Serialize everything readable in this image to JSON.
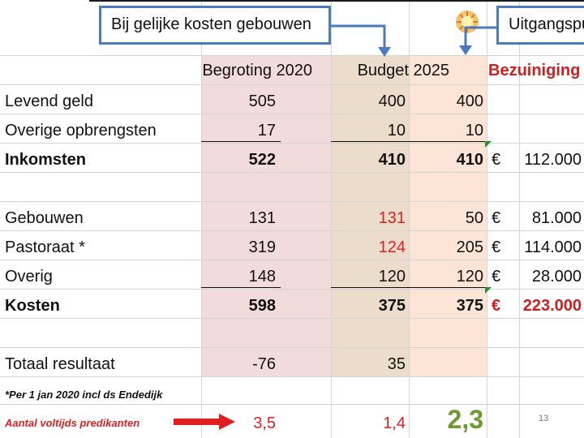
{
  "callouts": {
    "same_costs": "Bij gelijke kosten gebouwen",
    "starting_point": "Uitgangspu"
  },
  "headers": {
    "begroting_2020": "Begroting 2020",
    "budget_2025": "Budget 2025",
    "bezuiniging": "Bezuiniging"
  },
  "rows": {
    "levend_geld": {
      "label": "Levend geld",
      "b2020": "505",
      "b2025a": "400",
      "b2025b": "400"
    },
    "overige": {
      "label": "Overige opbrengsten",
      "b2020": "17",
      "b2025a": "10",
      "b2025b": "10"
    },
    "inkomsten": {
      "label": "Inkomsten",
      "b2020": "522",
      "b2025a": "410",
      "b2025b": "410",
      "euro": "€",
      "saving": "112.000"
    },
    "gebouwen": {
      "label": "Gebouwen",
      "b2020": "131",
      "b2025a": "131",
      "b2025b": "50",
      "euro": "€",
      "saving": "81.000"
    },
    "pastoraat": {
      "label": "Pastoraat *",
      "b2020": "319",
      "b2025a": "124",
      "b2025b": "205",
      "euro": "€",
      "saving": "114.000"
    },
    "overig": {
      "label": "Overig",
      "b2020": "148",
      "b2025a": "120",
      "b2025b": "120",
      "euro": "€",
      "saving": "28.000"
    },
    "kosten": {
      "label": "Kosten",
      "b2020": "598",
      "b2025a": "375",
      "b2025b": "375",
      "euro": "€",
      "saving": "223.000"
    },
    "totaal": {
      "label": "Totaal resultaat",
      "b2020": "-76",
      "b2025a": "35"
    }
  },
  "footnote": "*Per 1 jan 2020 incl ds Endedijk",
  "fte": {
    "label": "Aantal voltijds predikanten",
    "v2020": "3,5",
    "v2025a": "1,4",
    "v2025b": "2,3"
  },
  "page_number": "13",
  "colors": {
    "pink_shade": "#f2dcdb",
    "tan_shade": "#ecdccb",
    "peach_shade": "#fce4d6",
    "callout_border": "#4a7bbd",
    "red": "#e02020",
    "green": "#6b9a2e"
  },
  "icons": [
    "sun-icon",
    "arrow-right-icon",
    "arrow-down-icon"
  ]
}
